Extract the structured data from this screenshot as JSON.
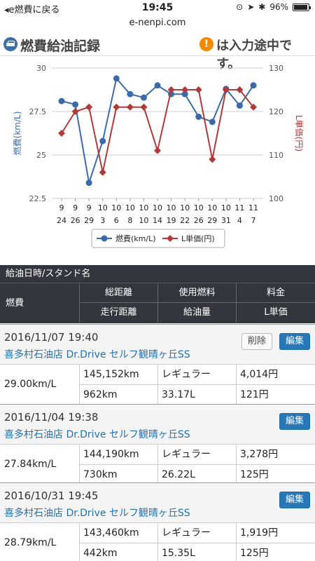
{
  "status_bar": {
    "back_label": "◂e燃費に戻る",
    "time": "19:45",
    "battery": "96%"
  },
  "url": "e-nenpi.com",
  "header": {
    "title": "燃費給油記録",
    "notice": "は入力途中です。",
    "notice_icon": "!"
  },
  "chart_data": {
    "type": "line",
    "categories": [
      [
        "9",
        "24"
      ],
      [
        "9",
        "26"
      ],
      [
        "9",
        "29"
      ],
      [
        "10",
        "3"
      ],
      [
        "10",
        "6"
      ],
      [
        "10",
        "8"
      ],
      [
        "10",
        "10"
      ],
      [
        "10",
        "14"
      ],
      [
        "10",
        "19"
      ],
      [
        "10",
        "22"
      ],
      [
        "10",
        "26"
      ],
      [
        "10",
        "29"
      ],
      [
        "10",
        "31"
      ],
      [
        "11",
        "4"
      ],
      [
        "11",
        "7"
      ]
    ],
    "series": [
      {
        "name": "燃費(km/L)",
        "axis": "left",
        "color": "#3c6aa8",
        "marker": "circle",
        "values": [
          28.1,
          27.9,
          23.4,
          25.8,
          29.4,
          28.5,
          28.3,
          29.0,
          28.5,
          28.5,
          27.2,
          26.9,
          28.8,
          27.84,
          29.0
        ]
      },
      {
        "name": "L単価(円)",
        "axis": "right",
        "color": "#b03a3a",
        "marker": "diamond",
        "values": [
          115,
          120,
          121,
          106,
          121,
          121,
          121,
          111,
          125,
          125,
          125,
          109,
          125,
          125,
          121
        ]
      }
    ],
    "ylabel_left": "燃費(km/L)",
    "ylabel_right": "L単価(円)",
    "ylim_left": [
      22.5,
      30
    ],
    "ylim_right": [
      100,
      130
    ],
    "yticks_left": [
      "22.5",
      "25",
      "27.5",
      "30"
    ],
    "yticks_right": [
      "100",
      "110",
      "120",
      "130"
    ],
    "grid": true,
    "legend": "bottom"
  },
  "table_header": {
    "top": "給油日時/スタンド名",
    "fuel": "燃費",
    "total_distance": "総距離",
    "fuel_type": "使用燃料",
    "price": "料金",
    "trip_distance": "走行距離",
    "amount": "給油量",
    "unit_price": "L単価"
  },
  "records": [
    {
      "datetime": "2016/11/07 19:40",
      "stand": "喜多村石油店 Dr.Drive セルフ観晴ヶ丘SS",
      "delete_label": "削除",
      "edit_label": "編集",
      "fuel": "29.00km/L",
      "total": "145,152km",
      "fuel_type": "レギュラー",
      "price": "4,014円",
      "trip": "962km",
      "amount": "33.17L",
      "unit_price": "121円"
    },
    {
      "datetime": "2016/11/04 19:38",
      "stand": "喜多村石油店 Dr.Drive セルフ観晴ヶ丘SS",
      "edit_label": "編集",
      "fuel": "27.84km/L",
      "total": "144,190km",
      "fuel_type": "レギュラー",
      "price": "3,278円",
      "trip": "730km",
      "amount": "26.22L",
      "unit_price": "125円"
    },
    {
      "datetime": "2016/10/31 19:45",
      "stand": "喜多村石油店 Dr.Drive セルフ観晴ヶ丘SS",
      "edit_label": "編集",
      "fuel": "28.79km/L",
      "total": "143,460km",
      "fuel_type": "レギュラー",
      "price": "1,919円",
      "trip": "442km",
      "amount": "15.35L",
      "unit_price": "125円"
    }
  ]
}
